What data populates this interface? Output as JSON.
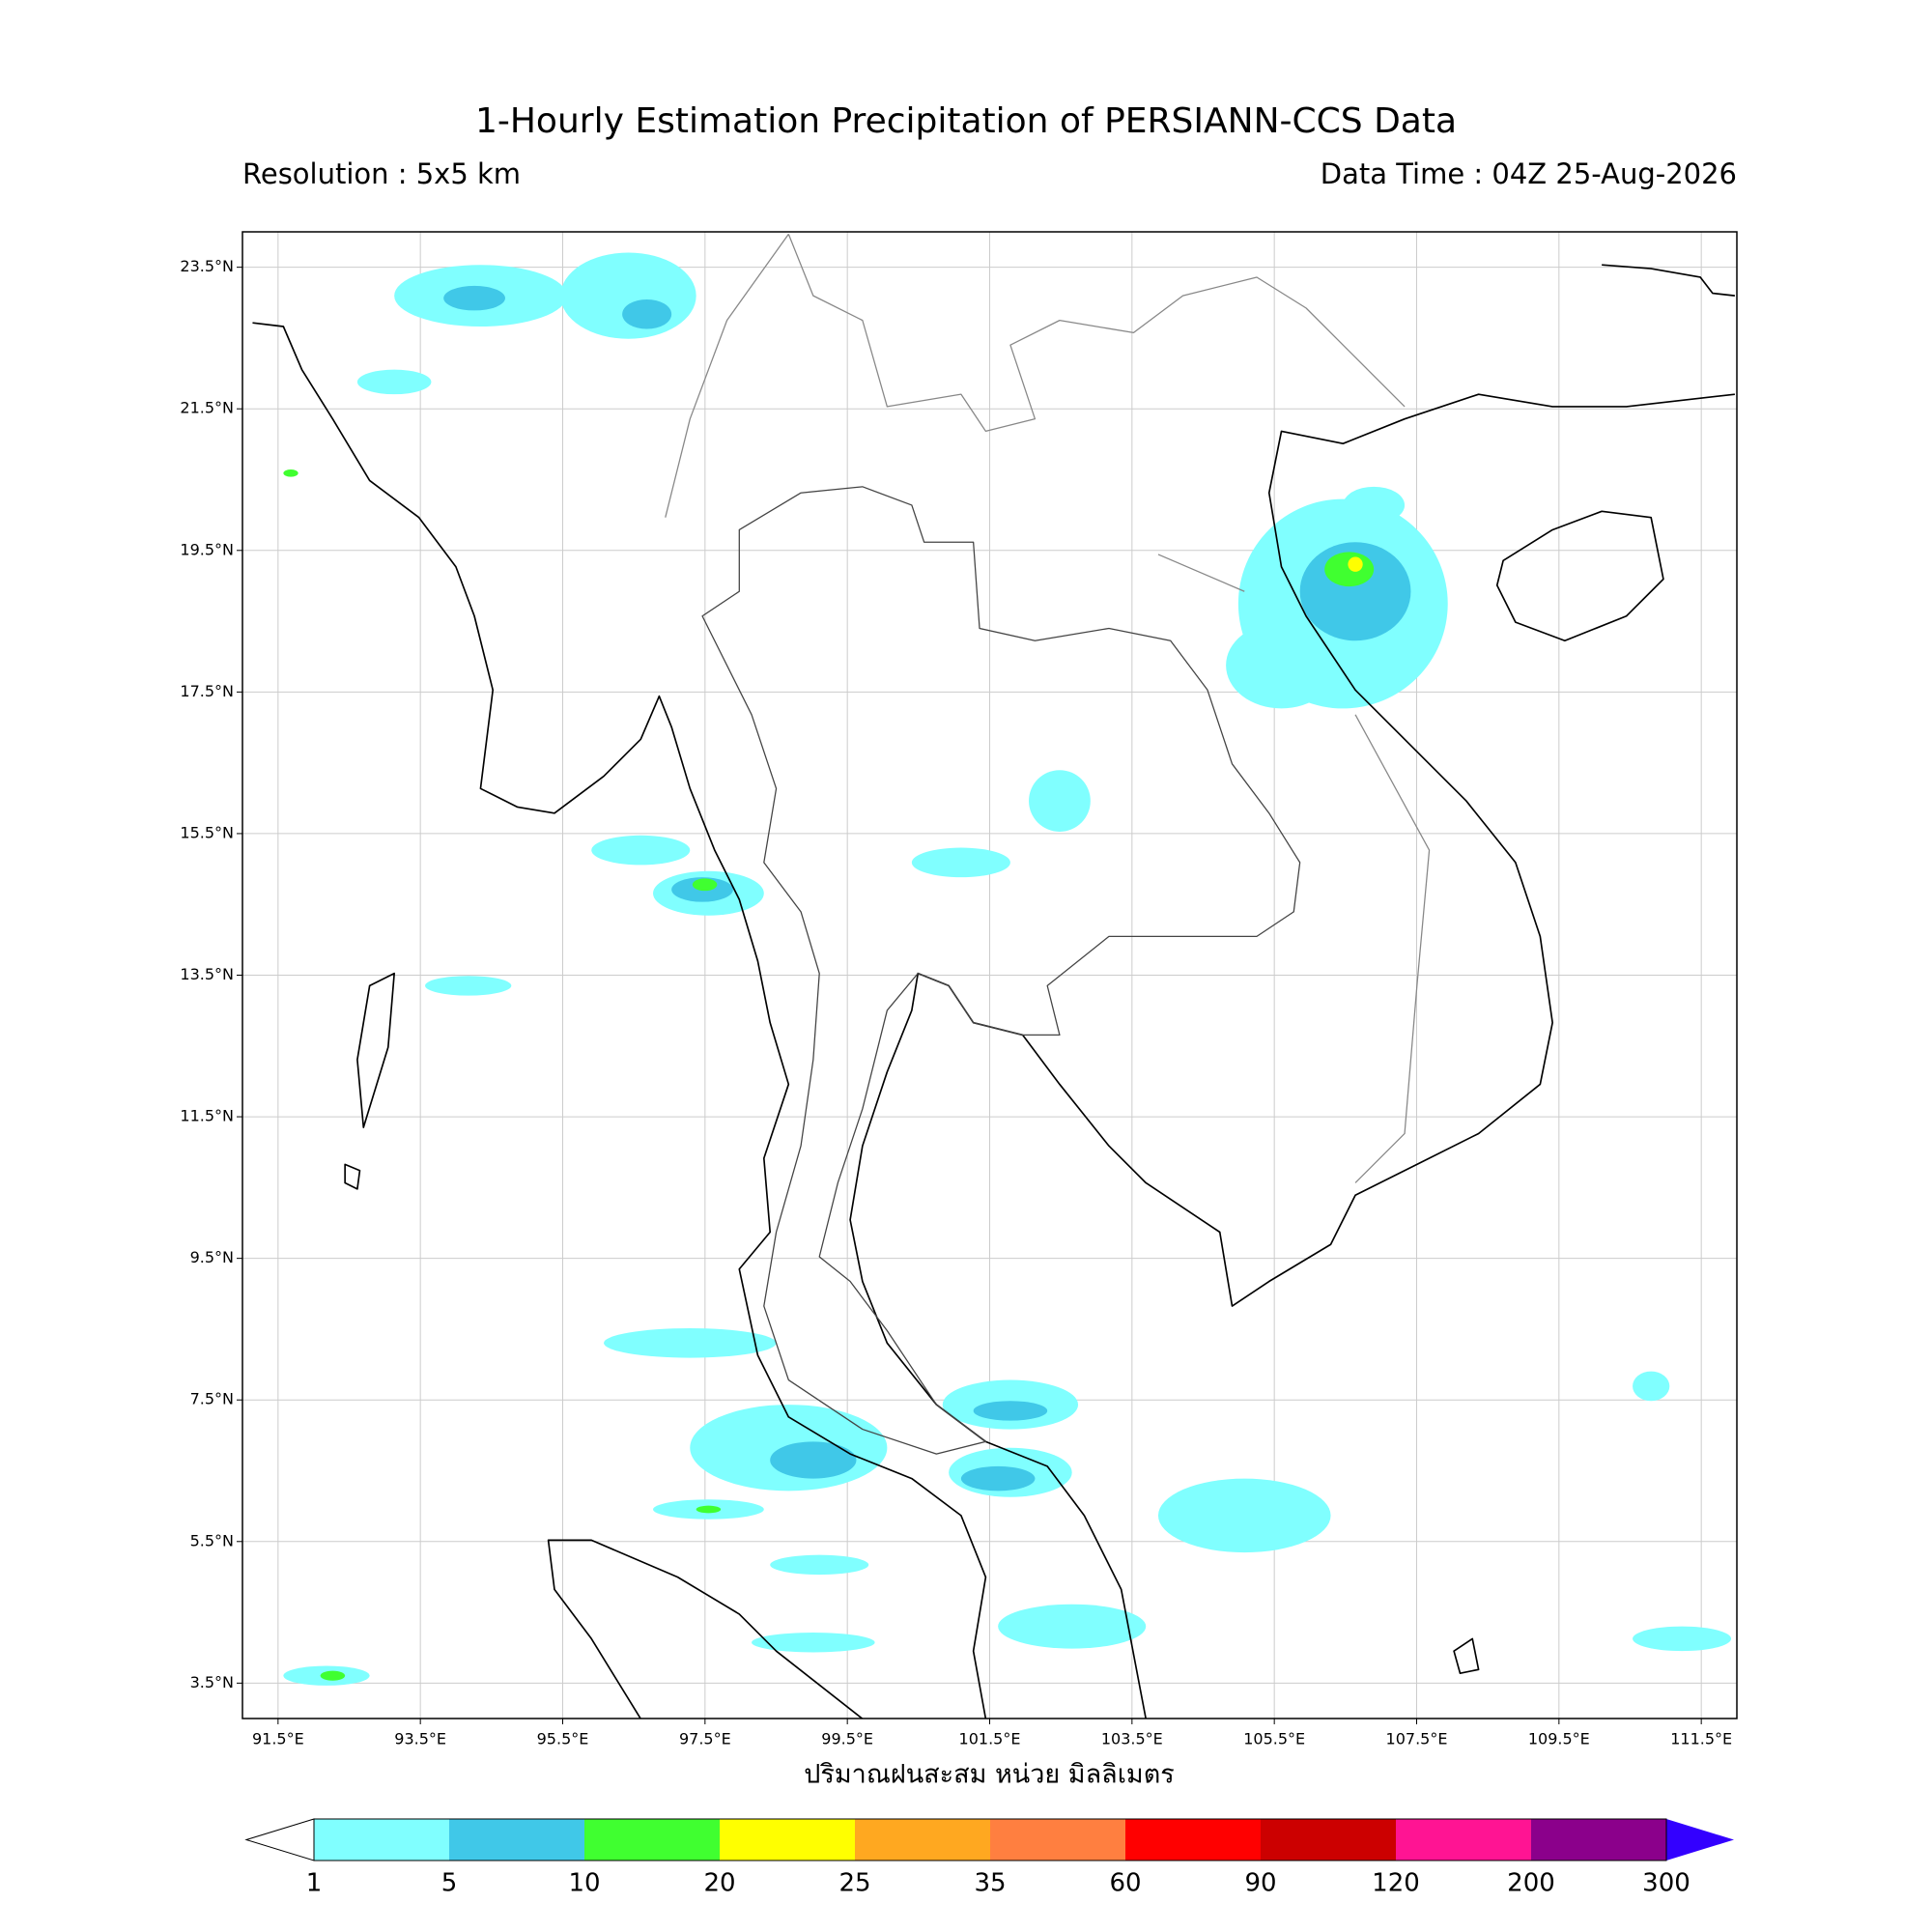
{
  "header": {
    "title": "1-Hourly Estimation Precipitation of PERSIANN-CCS Data",
    "resolution": "Resolution : 5x5 km",
    "data_time": "Data Time : 04Z 25-Aug-2026"
  },
  "map": {
    "xlim": [
      91,
      112
    ],
    "ylim": [
      3,
      24
    ],
    "grid": true,
    "xticks": [
      {
        "value": 91.5,
        "label": "91.5°E"
      },
      {
        "value": 93.5,
        "label": "93.5°E"
      },
      {
        "value": 95.5,
        "label": "95.5°E"
      },
      {
        "value": 97.5,
        "label": "97.5°E"
      },
      {
        "value": 99.5,
        "label": "99.5°E"
      },
      {
        "value": 101.5,
        "label": "101.5°E"
      },
      {
        "value": 103.5,
        "label": "103.5°E"
      },
      {
        "value": 105.5,
        "label": "105.5°E"
      },
      {
        "value": 107.5,
        "label": "107.5°E"
      },
      {
        "value": 109.5,
        "label": "109.5°E"
      },
      {
        "value": 111.5,
        "label": "111.5°E"
      }
    ],
    "yticks": [
      {
        "value": 23.5,
        "label": "23.5°N"
      },
      {
        "value": 21.5,
        "label": "21.5°N"
      },
      {
        "value": 19.5,
        "label": "19.5°N"
      },
      {
        "value": 17.5,
        "label": "17.5°N"
      },
      {
        "value": 15.5,
        "label": "15.5°N"
      },
      {
        "value": 13.5,
        "label": "13.5°N"
      },
      {
        "value": 11.5,
        "label": "11.5°N"
      },
      {
        "value": 9.5,
        "label": "9.5°N"
      },
      {
        "value": 7.5,
        "label": "7.5°N"
      },
      {
        "value": 5.5,
        "label": "5.5°N"
      },
      {
        "value": 3.5,
        "label": "3.5°N"
      }
    ],
    "xlabel": "ปริมาณฝนสะสม หน่วย มิลลิเมตร"
  },
  "colorbar": {
    "bounds": [
      1,
      5,
      10,
      20,
      25,
      35,
      60,
      90,
      120,
      200,
      300
    ],
    "colors": [
      "#80ffff",
      "#40c8e8",
      "#40ff30",
      "#ffff00",
      "#ffa820",
      "#ff7f40",
      "#ff0000",
      "#cc0000",
      "#ff1493",
      "#8b008b"
    ],
    "over_color": "#3300ff"
  }
}
